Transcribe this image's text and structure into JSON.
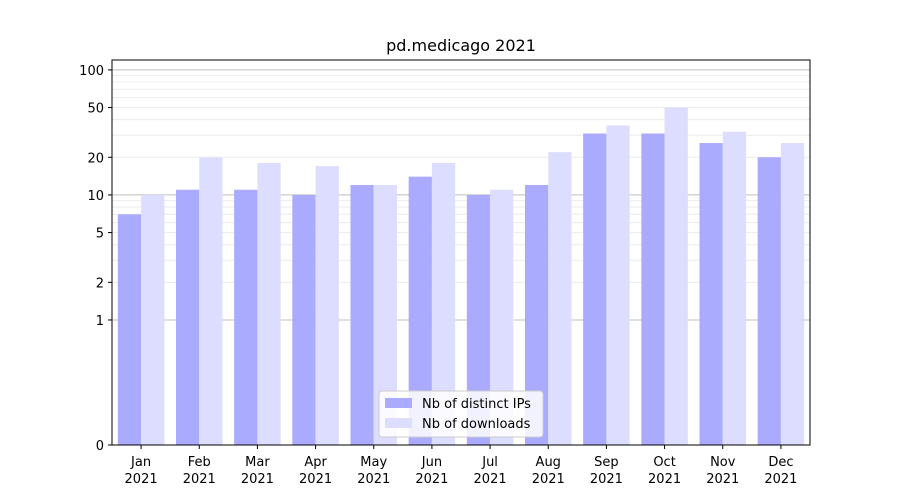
{
  "chart_data": {
    "type": "bar",
    "title": "pd.medicago 2021",
    "xlabel": "",
    "ylabel": "",
    "scale": "symlog",
    "ylim": [
      0,
      120
    ],
    "yticks": [
      0,
      1,
      2,
      5,
      10,
      20,
      50,
      100
    ],
    "grid": true,
    "legend_position": "bottom-center",
    "categories": [
      [
        "Jan",
        "2021"
      ],
      [
        "Feb",
        "2021"
      ],
      [
        "Mar",
        "2021"
      ],
      [
        "Apr",
        "2021"
      ],
      [
        "May",
        "2021"
      ],
      [
        "Jun",
        "2021"
      ],
      [
        "Jul",
        "2021"
      ],
      [
        "Aug",
        "2021"
      ],
      [
        "Sep",
        "2021"
      ],
      [
        "Oct",
        "2021"
      ],
      [
        "Nov",
        "2021"
      ],
      [
        "Dec",
        "2021"
      ]
    ],
    "series": [
      {
        "name": "Nb of distinct IPs",
        "color": "#aaaaff",
        "values": [
          7,
          11,
          11,
          10,
          12,
          14,
          10,
          12,
          31,
          31,
          26,
          20
        ]
      },
      {
        "name": "Nb of downloads",
        "color": "#ddddff",
        "values": [
          10,
          20,
          18,
          17,
          12,
          18,
          11,
          22,
          36,
          50,
          32,
          26
        ]
      }
    ]
  }
}
